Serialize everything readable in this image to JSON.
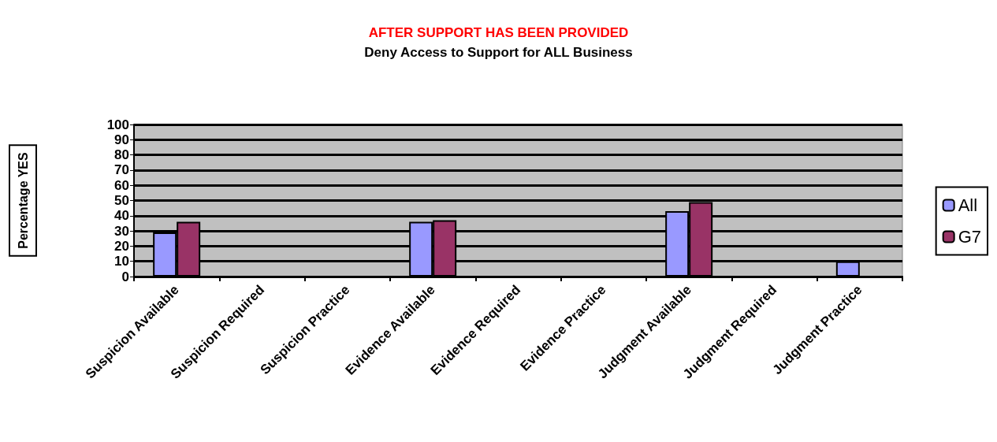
{
  "chart_data": {
    "type": "bar",
    "title": "AFTER SUPPORT HAS BEEN PROVIDED",
    "subtitle": "Deny Access to Support for ALL Business",
    "ylabel": "Percentage YES",
    "categories": [
      "Suspicion Available",
      "Suspicion Required",
      "Suspicion Practice",
      "Evidence Available",
      "Evidence Required",
      "Evidence Practice",
      "Judgment Available",
      "Judgment Required",
      "Judgment Practice"
    ],
    "series": [
      {
        "name": "All",
        "color": "#9999ff",
        "values": [
          29,
          null,
          null,
          36,
          null,
          null,
          43,
          null,
          10
        ]
      },
      {
        "name": "G7",
        "color": "#993366",
        "values": [
          36,
          null,
          null,
          37,
          null,
          null,
          49,
          null,
          null
        ]
      }
    ],
    "ylim": [
      0,
      100
    ],
    "yticks": [
      0,
      10,
      20,
      30,
      40,
      50,
      60,
      70,
      80,
      90,
      100
    ],
    "grid": "y",
    "legend": "right"
  }
}
